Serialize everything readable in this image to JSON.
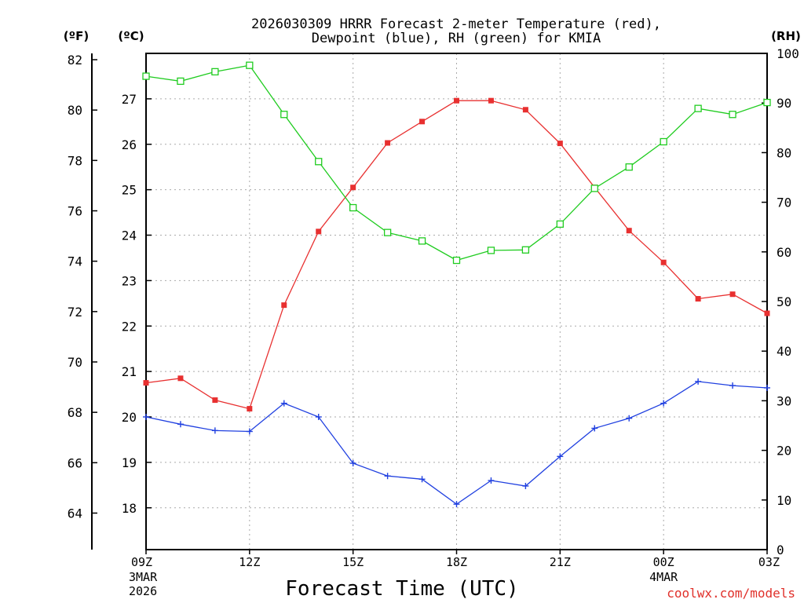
{
  "chart_data": {
    "type": "line",
    "title_line1": "2026030309 HRRR Forecast 2-meter Temperature (red),",
    "title_line2": "Dewpoint (blue), RH (green) for KMIA",
    "unit_f": "(ºF)",
    "unit_c": "(ºC)",
    "unit_rh": "(RH)",
    "xlabel": "Forecast Time (UTC)",
    "credit": "coolwx.com/models",
    "hours": [
      0,
      1,
      2,
      3,
      4,
      5,
      6,
      7,
      8,
      9,
      10,
      11,
      12,
      13,
      14,
      15,
      16,
      17,
      18
    ],
    "x_ticks": [
      {
        "hour": 0,
        "label": "09Z",
        "date1": "3MAR",
        "date2": "2026"
      },
      {
        "hour": 3,
        "label": "12Z"
      },
      {
        "hour": 6,
        "label": "15Z"
      },
      {
        "hour": 9,
        "label": "18Z"
      },
      {
        "hour": 12,
        "label": "21Z"
      },
      {
        "hour": 15,
        "label": "00Z",
        "date1": "4MAR"
      },
      {
        "hour": 18,
        "label": "03Z"
      }
    ],
    "f_axis": {
      "ticks": [
        "64",
        "66",
        "68",
        "70",
        "72",
        "74",
        "76",
        "78",
        "80",
        "82"
      ],
      "range": [
        62.55,
        82.25
      ]
    },
    "c_axis": {
      "ticks": [
        "18",
        "19",
        "20",
        "21",
        "22",
        "23",
        "24",
        "25",
        "26",
        "27"
      ],
      "range": [
        17.08,
        28.0
      ]
    },
    "rh_axis": {
      "ticks": [
        "0",
        "10",
        "20",
        "30",
        "40",
        "50",
        "60",
        "70",
        "80",
        "90",
        "100"
      ],
      "range": [
        0,
        100
      ]
    },
    "series": [
      {
        "name": "Temperature",
        "unit": "C",
        "color": "#e83030",
        "values": [
          20.75,
          20.85,
          20.37,
          20.18,
          22.46,
          24.08,
          25.05,
          26.03,
          26.5,
          26.96,
          26.96,
          26.76,
          26.02,
          25.05,
          24.1,
          23.4,
          22.6,
          22.7,
          22.28
        ]
      },
      {
        "name": "Dewpoint",
        "unit": "C",
        "color": "#2040e0",
        "values": [
          20.0,
          19.84,
          19.7,
          19.68,
          20.3,
          20.0,
          18.98,
          18.7,
          18.63,
          18.08,
          18.6,
          18.48,
          19.13,
          19.75,
          19.97,
          20.3,
          20.78,
          20.69,
          20.64
        ]
      },
      {
        "name": "RH",
        "unit": "%",
        "color": "#20cc20",
        "values": [
          95.4,
          94.4,
          96.3,
          97.6,
          87.7,
          78.2,
          68.9,
          63.9,
          62.2,
          58.3,
          60.3,
          60.4,
          65.6,
          72.8,
          77.1,
          82.2,
          88.9,
          87.7,
          90.1
        ]
      }
    ]
  }
}
